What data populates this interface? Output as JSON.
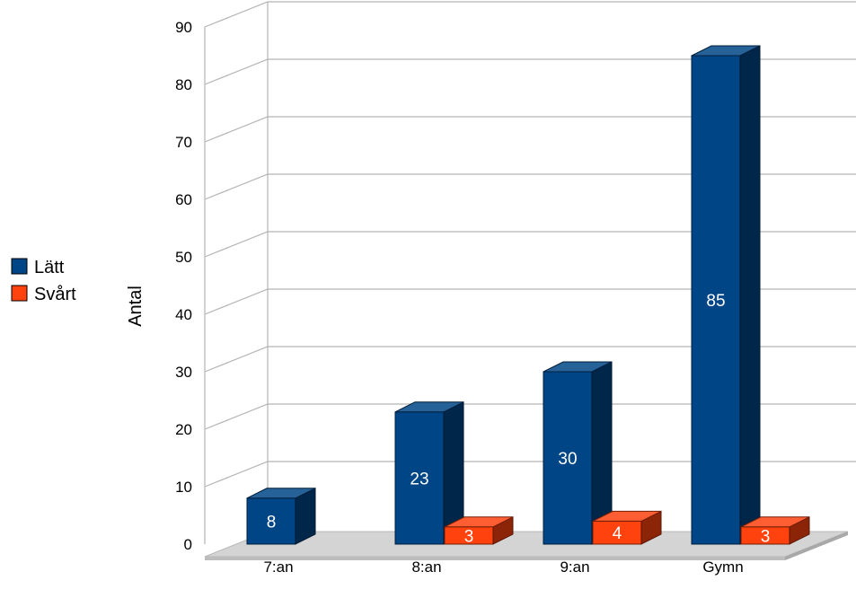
{
  "chart_data": {
    "type": "bar",
    "title": "",
    "xlabel": "",
    "ylabel": "Antal",
    "categories": [
      "7:an",
      "8:an",
      "9:an",
      "Gymn"
    ],
    "series": [
      {
        "name": "Lätt",
        "values": [
          8,
          23,
          30,
          85
        ],
        "labels": [
          "8",
          "23",
          "30",
          "85"
        ],
        "color": "#004586"
      },
      {
        "name": "Svårt",
        "values": [
          0,
          3,
          4,
          3
        ],
        "labels": [
          "",
          "3",
          "4",
          "3"
        ],
        "color": "#ff420e"
      }
    ],
    "ylim": [
      0,
      90
    ],
    "yticks": [
      "0",
      "10",
      "20",
      "30",
      "40",
      "50",
      "60",
      "70",
      "80",
      "90"
    ],
    "grid": true,
    "legend_position": "left",
    "floor_color": "#d4d4d4",
    "three_d": true
  }
}
